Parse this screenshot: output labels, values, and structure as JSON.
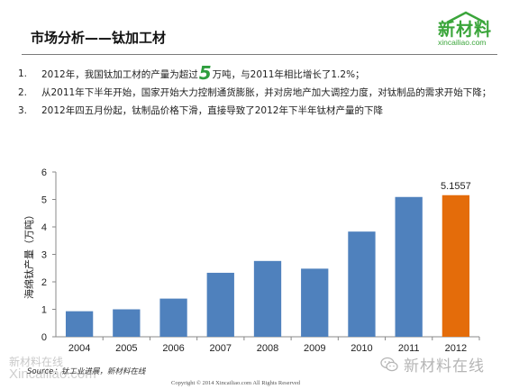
{
  "header": {
    "title": "市场分析——钛加工材",
    "logo_text": "新材料",
    "logo_domain": "xincailiao.com"
  },
  "points": [
    {
      "num": "1.",
      "pre": "2012年，我国钛加工材的产量为超过",
      "highlight": "5",
      "post": "万吨，与2011年相比增长了1.2%；"
    },
    {
      "num": "2.",
      "pre": "从2011年下半年开始，国家开始大力控制通货膨胀，并对房地产加大调控力度，对钛制品的需求开始下降；",
      "highlight": "",
      "post": ""
    },
    {
      "num": "3.",
      "pre": "2012年四五月份起，钛制品价格下滑，直接导致了2012年下半年钛材产量的下降",
      "highlight": "",
      "post": ""
    }
  ],
  "chart_data": {
    "type": "bar",
    "categories": [
      "2004",
      "2005",
      "2006",
      "2007",
      "2008",
      "2009",
      "2010",
      "2011",
      "2012"
    ],
    "values": [
      0.93,
      1.0,
      1.39,
      2.33,
      2.76,
      2.48,
      3.83,
      5.09,
      5.1557
    ],
    "ylabel": "海绵钛产量（万吨）",
    "ylim": [
      0,
      6
    ],
    "yticks": [
      0,
      1,
      2,
      3,
      4,
      5,
      6
    ],
    "gridlines": false,
    "data_labels": [
      {
        "category": "2012",
        "text": "5.1557"
      }
    ],
    "colors": {
      "default": "#4f81bd",
      "highlight": "#e46c0a",
      "highlight_category": "2012"
    }
  },
  "footer": {
    "source": "Source：钛工业进展，新材料在线",
    "copyright": "Copyright © 2014   Xincailiao.com   All Rights Reserved",
    "watermark_text": "新材料在线",
    "watermark_url": "Xincailiao.com",
    "wechat_name": "新材料在线"
  }
}
